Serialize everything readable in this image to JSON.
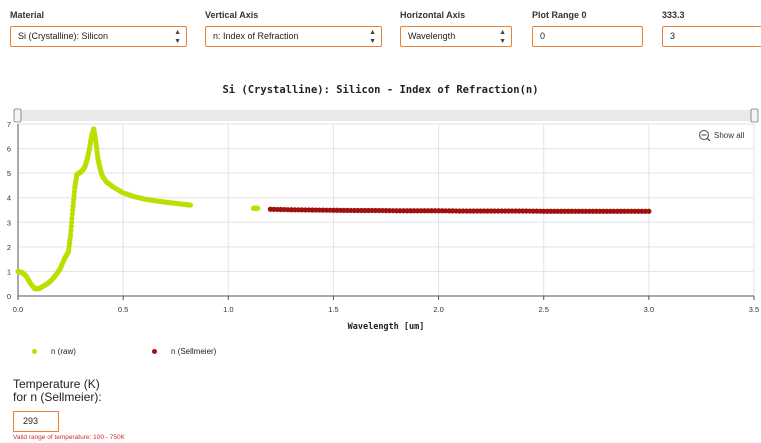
{
  "controls": {
    "material_label": "Material",
    "material_value": "Si (Crystalline): Silicon",
    "vertical_label": "Vertical Axis",
    "vertical_value": "n: Index of Refraction",
    "horizontal_label": "Horizontal Axis",
    "horizontal_value": "Wavelength",
    "range_label": "Plot Range  0",
    "range_min": "0",
    "range_max_label": "333.3",
    "range_max": "3"
  },
  "accent_color": "#e8823a",
  "chart_data": {
    "type": "scatter",
    "title": "Si (Crystalline): Silicon - Index of Refraction(n)",
    "xlabel": "Wavelength [um]",
    "ylabel": "",
    "xlim": [
      0,
      3.5
    ],
    "ylim": [
      0,
      7
    ],
    "xticks": [
      "0.0",
      "0.5",
      "1.0",
      "1.5",
      "2.0",
      "2.5",
      "3.0",
      "3.5"
    ],
    "yticks": [
      "0",
      "1",
      "2",
      "3",
      "4",
      "5",
      "6",
      "7"
    ],
    "grid": true,
    "legend": "bottom-left",
    "zoom_button": "Show all",
    "series": [
      {
        "name": "n (raw)",
        "color": "#b8e000",
        "x": [
          0.0,
          0.02,
          0.04,
          0.06,
          0.08,
          0.1,
          0.12,
          0.14,
          0.16,
          0.18,
          0.2,
          0.22,
          0.24,
          0.25,
          0.26,
          0.27,
          0.28,
          0.29,
          0.3,
          0.31,
          0.32,
          0.33,
          0.34,
          0.35,
          0.36,
          0.37,
          0.38,
          0.39,
          0.4,
          0.42,
          0.45,
          0.5,
          0.55,
          0.6,
          0.65,
          0.7,
          0.75,
          0.8,
          0.82,
          1.12,
          1.14
        ],
        "values": [
          1.0,
          0.95,
          0.8,
          0.5,
          0.3,
          0.3,
          0.4,
          0.5,
          0.65,
          0.85,
          1.1,
          1.5,
          1.8,
          2.5,
          3.5,
          4.4,
          4.95,
          5.0,
          5.05,
          5.15,
          5.3,
          5.6,
          6.0,
          6.5,
          6.8,
          6.3,
          5.6,
          5.2,
          4.9,
          4.65,
          4.45,
          4.2,
          4.05,
          3.95,
          3.88,
          3.82,
          3.77,
          3.72,
          3.7,
          3.57,
          3.57
        ]
      },
      {
        "name": "n (Sellmeier)",
        "color": "#a10f0f",
        "x": [
          1.2,
          1.3,
          1.4,
          1.5,
          1.6,
          1.7,
          1.8,
          1.9,
          2.0,
          2.1,
          2.2,
          2.3,
          2.4,
          2.5,
          2.6,
          2.7,
          2.8,
          2.9,
          3.0
        ],
        "values": [
          3.53,
          3.51,
          3.5,
          3.49,
          3.48,
          3.48,
          3.47,
          3.47,
          3.47,
          3.46,
          3.46,
          3.46,
          3.46,
          3.45,
          3.45,
          3.45,
          3.45,
          3.45,
          3.45
        ]
      }
    ]
  },
  "temperature": {
    "label_line1": "Temperature (K)",
    "label_line2": "for n (Sellmeier):",
    "value": "293",
    "note": "Valid range of temperature: 100 - 750K"
  }
}
